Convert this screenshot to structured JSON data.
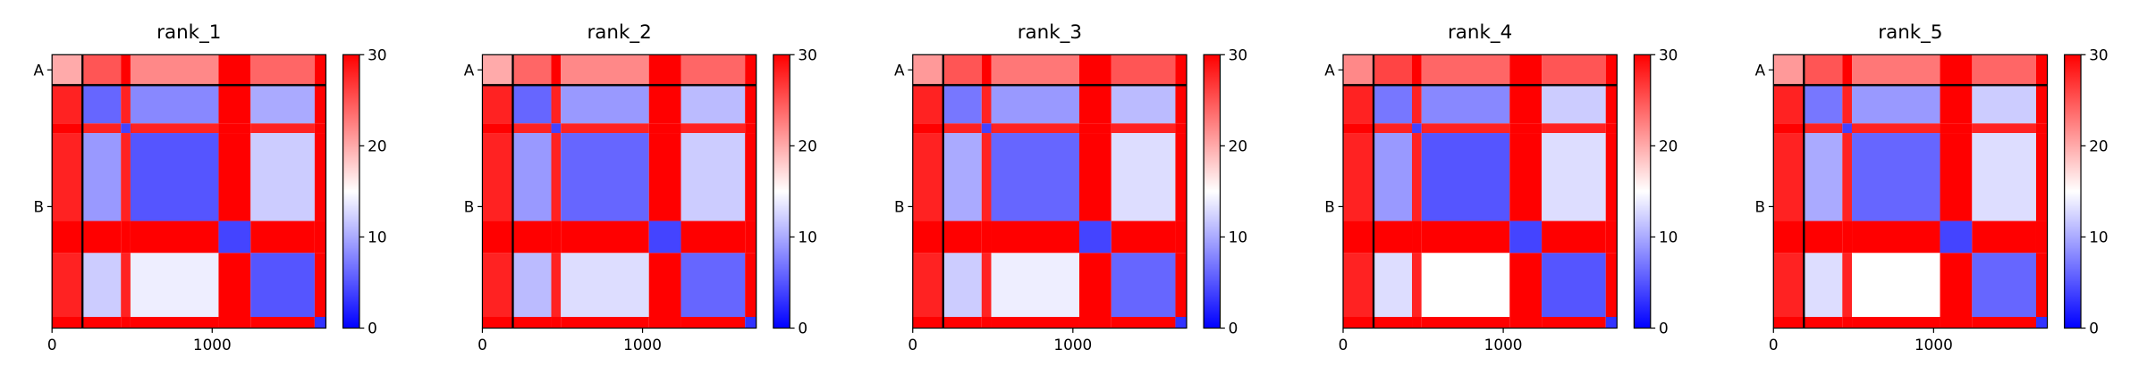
{
  "chart_data": [
    {
      "type": "heatmap",
      "title": "rank_1",
      "edges": [
        0,
        190,
        430,
        490,
        1040,
        1240,
        1640,
        1710
      ],
      "matrix": [
        [
          20,
          25,
          30,
          22,
          30,
          24,
          30
        ],
        [
          28,
          6,
          28,
          8,
          30,
          10,
          30
        ],
        [
          30,
          28,
          4,
          28,
          30,
          28,
          30
        ],
        [
          28,
          9,
          28,
          5,
          30,
          12,
          30
        ],
        [
          30,
          30,
          30,
          30,
          4,
          30,
          30
        ],
        [
          28,
          12,
          28,
          14,
          30,
          5,
          30
        ],
        [
          30,
          30,
          30,
          30,
          30,
          30,
          3
        ]
      ],
      "xlim": [
        0,
        1710
      ],
      "ylim": [
        1710,
        0
      ],
      "xticks": [
        0,
        1000
      ],
      "yticks": [
        {
          "value": 95,
          "label": "A"
        },
        {
          "value": 950,
          "label": "B"
        }
      ],
      "clim": [
        0,
        30
      ],
      "cticks": [
        0,
        10,
        20,
        30
      ],
      "chain_breaks": [
        190
      ]
    },
    {
      "type": "heatmap",
      "title": "rank_2",
      "edges": [
        0,
        190,
        430,
        490,
        1040,
        1240,
        1640,
        1710
      ],
      "matrix": [
        [
          20,
          24,
          30,
          22,
          30,
          24,
          30
        ],
        [
          28,
          6,
          28,
          9,
          30,
          11,
          30
        ],
        [
          30,
          28,
          4,
          28,
          30,
          28,
          30
        ],
        [
          28,
          9,
          28,
          6,
          30,
          12,
          30
        ],
        [
          30,
          30,
          30,
          30,
          4,
          30,
          30
        ],
        [
          28,
          11,
          28,
          13,
          30,
          6,
          30
        ],
        [
          30,
          30,
          30,
          30,
          30,
          30,
          3
        ]
      ],
      "xlim": [
        0,
        1710
      ],
      "ylim": [
        1710,
        0
      ],
      "xticks": [
        0,
        1000
      ],
      "yticks": [
        {
          "value": 95,
          "label": "A"
        },
        {
          "value": 950,
          "label": "B"
        }
      ],
      "clim": [
        0,
        30
      ],
      "cticks": [
        0,
        10,
        20,
        30
      ],
      "chain_breaks": [
        190
      ]
    },
    {
      "type": "heatmap",
      "title": "rank_3",
      "edges": [
        0,
        190,
        430,
        490,
        1040,
        1240,
        1640,
        1710
      ],
      "matrix": [
        [
          21,
          25,
          30,
          23,
          30,
          25,
          30
        ],
        [
          28,
          7,
          28,
          9,
          30,
          11,
          30
        ],
        [
          30,
          28,
          4,
          28,
          30,
          28,
          30
        ],
        [
          28,
          10,
          28,
          6,
          30,
          13,
          30
        ],
        [
          30,
          30,
          30,
          30,
          4,
          30,
          30
        ],
        [
          28,
          12,
          28,
          14,
          30,
          6,
          30
        ],
        [
          30,
          30,
          30,
          30,
          30,
          30,
          3
        ]
      ],
      "xlim": [
        0,
        1710
      ],
      "ylim": [
        1710,
        0
      ],
      "xticks": [
        0,
        1000
      ],
      "yticks": [
        {
          "value": 95,
          "label": "A"
        },
        {
          "value": 950,
          "label": "B"
        }
      ],
      "clim": [
        0,
        30
      ],
      "cticks": [
        0,
        10,
        20,
        30
      ],
      "chain_breaks": [
        190
      ]
    },
    {
      "type": "heatmap",
      "title": "rank_4",
      "edges": [
        0,
        190,
        430,
        490,
        1040,
        1240,
        1640,
        1710
      ],
      "matrix": [
        [
          22,
          26,
          30,
          24,
          30,
          25,
          30
        ],
        [
          28,
          7,
          28,
          8,
          30,
          12,
          30
        ],
        [
          30,
          28,
          4,
          28,
          30,
          28,
          30
        ],
        [
          28,
          9,
          28,
          5,
          30,
          13,
          30
        ],
        [
          30,
          30,
          30,
          30,
          4,
          30,
          30
        ],
        [
          28,
          13,
          28,
          15,
          30,
          5,
          30
        ],
        [
          30,
          30,
          30,
          30,
          30,
          30,
          3
        ]
      ],
      "xlim": [
        0,
        1710
      ],
      "ylim": [
        1710,
        0
      ],
      "xticks": [
        0,
        1000
      ],
      "yticks": [
        {
          "value": 95,
          "label": "A"
        },
        {
          "value": 950,
          "label": "B"
        }
      ],
      "clim": [
        0,
        30
      ],
      "cticks": [
        0,
        10,
        20,
        30
      ],
      "chain_breaks": [
        190
      ]
    },
    {
      "type": "heatmap",
      "title": "rank_5",
      "edges": [
        0,
        190,
        430,
        490,
        1040,
        1240,
        1640,
        1710
      ],
      "matrix": [
        [
          21,
          25,
          30,
          23,
          30,
          24,
          30
        ],
        [
          28,
          7,
          28,
          9,
          30,
          12,
          30
        ],
        [
          30,
          28,
          4,
          28,
          30,
          28,
          30
        ],
        [
          28,
          10,
          28,
          6,
          30,
          13,
          30
        ],
        [
          30,
          30,
          30,
          30,
          4,
          30,
          30
        ],
        [
          28,
          13,
          28,
          15,
          30,
          6,
          30
        ],
        [
          30,
          30,
          30,
          30,
          30,
          30,
          3
        ]
      ],
      "xlim": [
        0,
        1710
      ],
      "ylim": [
        1710,
        0
      ],
      "xticks": [
        0,
        1000
      ],
      "yticks": [
        {
          "value": 95,
          "label": "A"
        },
        {
          "value": 950,
          "label": "B"
        }
      ],
      "clim": [
        0,
        30
      ],
      "cticks": [
        0,
        10,
        20,
        30
      ],
      "chain_breaks": [
        190
      ]
    }
  ]
}
